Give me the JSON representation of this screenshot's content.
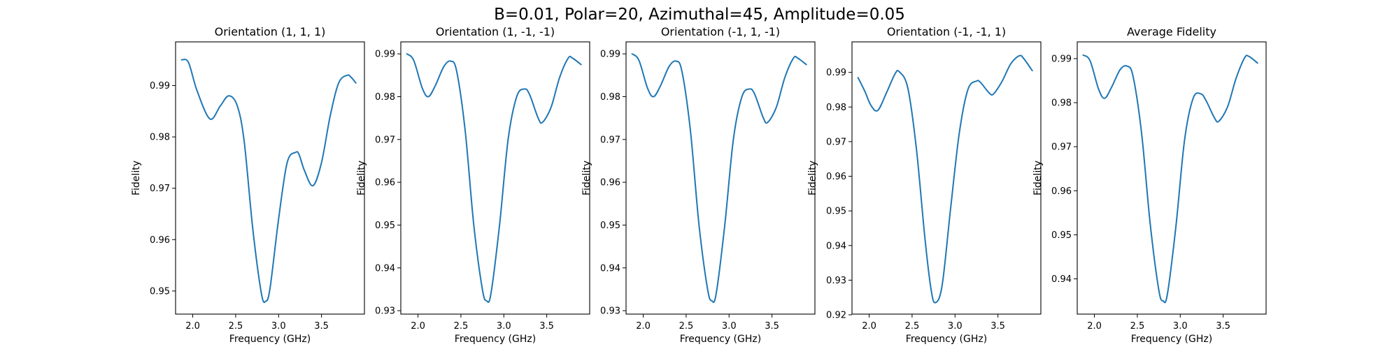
{
  "figure": {
    "suptitle": "B=0.01, Polar=20, Azimuthal=45, Amplitude=0.05",
    "line_color": "#1f77b4"
  },
  "chart_data": [
    {
      "type": "line",
      "title": "Orientation (1, 1, 1)",
      "xlabel": "Frequency (GHz)",
      "ylabel": "Fidelity",
      "xlim": [
        1.8,
        4.0
      ],
      "ylim": [
        0.9455,
        0.9985
      ],
      "xticks": [
        2.0,
        2.5,
        3.0,
        3.5
      ],
      "xtick_labels": [
        "2.0",
        "2.5",
        "3.0",
        "3.5"
      ],
      "yticks": [
        0.95,
        0.96,
        0.97,
        0.98,
        0.99
      ],
      "ytick_labels": [
        "0.95",
        "0.96",
        "0.97",
        "0.98",
        "0.99"
      ],
      "grid": false,
      "series": [
        {
          "x": [
            1.87,
            1.95,
            2.05,
            2.2,
            2.32,
            2.42,
            2.52,
            2.6,
            2.7,
            2.8,
            2.85,
            2.9,
            3.0,
            3.1,
            3.2,
            3.24,
            3.3,
            3.4,
            3.5,
            3.6,
            3.7,
            3.8,
            3.85,
            3.9
          ],
          "y": [
            0.995,
            0.9945,
            0.989,
            0.9835,
            0.986,
            0.988,
            0.986,
            0.979,
            0.962,
            0.9495,
            0.948,
            0.9505,
            0.964,
            0.975,
            0.977,
            0.9765,
            0.9735,
            0.9705,
            0.975,
            0.984,
            0.9905,
            0.992,
            0.9915,
            0.9905
          ]
        }
      ]
    },
    {
      "type": "line",
      "title": "Orientation (1, -1, -1)",
      "xlabel": "Frequency (GHz)",
      "ylabel": "Fidelity",
      "xlim": [
        1.8,
        4.0
      ],
      "ylim": [
        0.9292,
        0.9928
      ],
      "xticks": [
        2.0,
        2.5,
        3.0,
        3.5
      ],
      "xtick_labels": [
        "2.0",
        "2.5",
        "3.0",
        "3.5"
      ],
      "yticks": [
        0.93,
        0.94,
        0.95,
        0.96,
        0.97,
        0.98,
        0.99
      ],
      "ytick_labels": [
        "0.93",
        "0.94",
        "0.95",
        "0.96",
        "0.97",
        "0.98",
        "0.99"
      ],
      "grid": false,
      "series": [
        {
          "x": [
            1.87,
            1.95,
            2.05,
            2.12,
            2.2,
            2.3,
            2.38,
            2.45,
            2.55,
            2.65,
            2.75,
            2.8,
            2.85,
            2.95,
            3.05,
            3.15,
            3.24,
            3.3,
            3.4,
            3.45,
            3.55,
            3.65,
            3.75,
            3.8,
            3.9
          ],
          "y": [
            0.99,
            0.9885,
            0.982,
            0.98,
            0.9825,
            0.987,
            0.9883,
            0.986,
            0.972,
            0.95,
            0.935,
            0.9323,
            0.934,
            0.95,
            0.97,
            0.98,
            0.9818,
            0.9805,
            0.975,
            0.974,
            0.9775,
            0.9845,
            0.989,
            0.989,
            0.9875
          ]
        }
      ]
    },
    {
      "type": "line",
      "title": "Orientation (-1, 1, -1)",
      "xlabel": "Frequency (GHz)",
      "ylabel": "Fidelity",
      "xlim": [
        1.8,
        4.0
      ],
      "ylim": [
        0.9292,
        0.9928
      ],
      "xticks": [
        2.0,
        2.5,
        3.0,
        3.5
      ],
      "xtick_labels": [
        "2.0",
        "2.5",
        "3.0",
        "3.5"
      ],
      "yticks": [
        0.93,
        0.94,
        0.95,
        0.96,
        0.97,
        0.98,
        0.99
      ],
      "ytick_labels": [
        "0.93",
        "0.94",
        "0.95",
        "0.96",
        "0.97",
        "0.98",
        "0.99"
      ],
      "grid": false,
      "series": [
        {
          "x": [
            1.87,
            1.95,
            2.05,
            2.12,
            2.2,
            2.3,
            2.38,
            2.45,
            2.55,
            2.65,
            2.75,
            2.8,
            2.85,
            2.95,
            3.05,
            3.15,
            3.24,
            3.3,
            3.4,
            3.45,
            3.55,
            3.65,
            3.75,
            3.8,
            3.9
          ],
          "y": [
            0.99,
            0.9885,
            0.982,
            0.98,
            0.9825,
            0.987,
            0.9883,
            0.986,
            0.972,
            0.95,
            0.935,
            0.9323,
            0.934,
            0.95,
            0.97,
            0.98,
            0.9818,
            0.9805,
            0.975,
            0.974,
            0.9775,
            0.9845,
            0.989,
            0.989,
            0.9875
          ]
        }
      ]
    },
    {
      "type": "line",
      "title": "Orientation (-1, -1, 1)",
      "xlabel": "Frequency (GHz)",
      "ylabel": "Fidelity",
      "xlim": [
        1.8,
        4.0
      ],
      "ylim": [
        0.9202,
        0.9988
      ],
      "xticks": [
        2.0,
        2.5,
        3.0,
        3.5
      ],
      "xtick_labels": [
        "2.0",
        "2.5",
        "3.0",
        "3.5"
      ],
      "yticks": [
        0.92,
        0.93,
        0.94,
        0.95,
        0.96,
        0.97,
        0.98,
        0.99
      ],
      "ytick_labels": [
        "0.92",
        "0.93",
        "0.94",
        "0.95",
        "0.96",
        "0.97",
        "0.98",
        "0.99"
      ],
      "grid": false,
      "series": [
        {
          "x": [
            1.87,
            1.95,
            2.02,
            2.1,
            2.2,
            2.3,
            2.35,
            2.45,
            2.55,
            2.65,
            2.72,
            2.77,
            2.85,
            2.95,
            3.05,
            3.15,
            3.25,
            3.3,
            3.4,
            3.45,
            3.55,
            3.65,
            3.75,
            3.8,
            3.9
          ],
          "y": [
            0.9885,
            0.9845,
            0.9805,
            0.979,
            0.984,
            0.9895,
            0.9902,
            0.9855,
            0.968,
            0.942,
            0.9275,
            0.9235,
            0.9285,
            0.951,
            0.9725,
            0.985,
            0.9875,
            0.987,
            0.984,
            0.9838,
            0.9875,
            0.9925,
            0.9948,
            0.994,
            0.9905
          ]
        }
      ]
    },
    {
      "type": "line",
      "title": "Average Fidelity",
      "xlabel": "Frequency (GHz)",
      "ylabel": "Fidelity",
      "xlim": [
        1.8,
        4.0
      ],
      "ylim": [
        0.932,
        0.9938
      ],
      "xticks": [
        2.0,
        2.5,
        3.0,
        3.5
      ],
      "xtick_labels": [
        "2.0",
        "2.5",
        "3.0",
        "3.5"
      ],
      "yticks": [
        0.94,
        0.95,
        0.96,
        0.97,
        0.98,
        0.99
      ],
      "ytick_labels": [
        "0.94",
        "0.95",
        "0.96",
        "0.97",
        "0.98",
        "0.99"
      ],
      "grid": false,
      "series": [
        {
          "x": [
            1.87,
            1.95,
            2.05,
            2.12,
            2.2,
            2.3,
            2.38,
            2.45,
            2.55,
            2.65,
            2.75,
            2.8,
            2.85,
            2.95,
            3.05,
            3.15,
            3.24,
            3.3,
            3.4,
            3.45,
            3.55,
            3.65,
            3.75,
            3.8,
            3.9
          ],
          "y": [
            0.9908,
            0.9895,
            0.983,
            0.981,
            0.9835,
            0.9875,
            0.9883,
            0.986,
            0.973,
            0.9525,
            0.9375,
            0.935,
            0.9365,
            0.952,
            0.9715,
            0.981,
            0.982,
            0.9805,
            0.9765,
            0.9758,
            0.979,
            0.9855,
            0.9902,
            0.9905,
            0.989
          ]
        }
      ]
    }
  ]
}
